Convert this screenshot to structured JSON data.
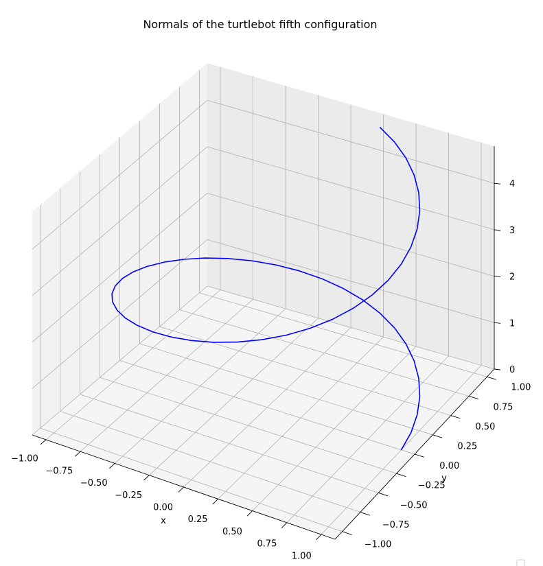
{
  "chart_data": {
    "type": "line3d",
    "title": "Normals of the turtlebot fifth configuration",
    "xlabel": "x",
    "ylabel": "y",
    "zlabel": "",
    "xlim": [
      -1.1,
      1.1
    ],
    "ylim": [
      -1.1,
      1.1
    ],
    "zlim": [
      0,
      4.8
    ],
    "xticks": [
      "−1.00",
      "−0.75",
      "−0.50",
      "−0.25",
      "0.00",
      "0.25",
      "0.50",
      "0.75",
      "1.00"
    ],
    "yticks": [
      "−1.00",
      "−0.75",
      "−0.50",
      "−0.25",
      "0.00",
      "0.25",
      "0.50",
      "0.75",
      "1.00"
    ],
    "zticks": [
      "0",
      "1",
      "2",
      "3",
      "4"
    ],
    "grid": true,
    "series": [
      {
        "color": "#0000ff",
        "t_start": 0,
        "t_end": 4.8,
        "points": 49,
        "x": "cos(pi*t/2)",
        "y": "sin(pi*t/2)",
        "z": "t"
      }
    ],
    "legend": "bottom-right (empty)"
  },
  "colors": {
    "line": "#0000ff",
    "pane_left": "#f2f2f2",
    "pane_right": "#ebebeb",
    "pane_floor": "#f5f5f5",
    "grid": "#b0b0b0"
  }
}
